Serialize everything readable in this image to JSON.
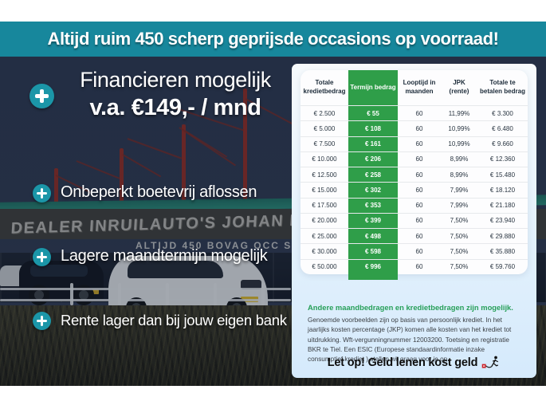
{
  "banner": {
    "text": "Altijd ruim 450 scherp geprijsde occasions op voorraad!"
  },
  "promo": {
    "title": "Financieren mogelijk",
    "subtitle": "v.a. €149,- / mnd",
    "bullets": [
      "Onbeperkt boetevrij aflossen",
      "Lagere maandtermijn mogelijk",
      "Rente lager dan bij jouw eigen bank"
    ]
  },
  "photo": {
    "sign_main": "DEALER INRUILAUTO'S JOHAN MEURE",
    "sign_sub": "ALTIJD 450 BOVAG OCC SIONS"
  },
  "finance_table": {
    "columns": [
      "Totale kredietbedrag",
      "Termijn bedrag",
      "Looptijd in maanden",
      "JPK (rente)",
      "Totale te betalen bedrag"
    ],
    "highlight_column": "Termijn bedrag",
    "rows": [
      [
        "€ 2.500",
        "€ 55",
        "60",
        "11,99%",
        "€ 3.300"
      ],
      [
        "€ 5.000",
        "€ 108",
        "60",
        "10,99%",
        "€ 6.480"
      ],
      [
        "€ 7.500",
        "€ 161",
        "60",
        "10,99%",
        "€ 9.660"
      ],
      [
        "€ 10.000",
        "€ 206",
        "60",
        "8,99%",
        "€ 12.360"
      ],
      [
        "€ 12.500",
        "€ 258",
        "60",
        "8,99%",
        "€ 15.480"
      ],
      [
        "€ 15.000",
        "€ 302",
        "60",
        "7,99%",
        "€ 18.120"
      ],
      [
        "€ 17.500",
        "€ 353",
        "60",
        "7,99%",
        "€ 21.180"
      ],
      [
        "€ 20.000",
        "€ 399",
        "60",
        "7,50%",
        "€ 23.940"
      ],
      [
        "€ 25.000",
        "€ 498",
        "60",
        "7,50%",
        "€ 29.880"
      ],
      [
        "€ 30.000",
        "€ 598",
        "60",
        "7,50%",
        "€ 35.880"
      ],
      [
        "€ 50.000",
        "€ 996",
        "60",
        "7,50%",
        "€ 59.760"
      ]
    ]
  },
  "footnotes": {
    "highlight": "Andere maandbedragen en kredietbedragen zijn mogelijk.",
    "disclaimer": "Genoemde voorbeelden zijn op basis van persoonlijk krediet. In het jaarlijks kosten percentage (JKP) komen alle kosten van het krediet tot uitdrukking. Wft-vergunningnummer 12003200. Toetsing en registratie BKR te Tiel. Een ESIC (Europese standaardinformatie inzake consumptief krediet ) stellen wij graag voor je op.",
    "warning": "Let op! Geld lenen kost geld",
    "warning_icon": "geld-lenen-kost-geld-icon"
  },
  "colors": {
    "banner_teal": "#17879c",
    "plus_teal": "#1b96a8",
    "table_green": "#2f9e49",
    "highlight_green": "#28a05a",
    "overlay_navy": "#2c3750",
    "warning_red": "#cc2229"
  }
}
